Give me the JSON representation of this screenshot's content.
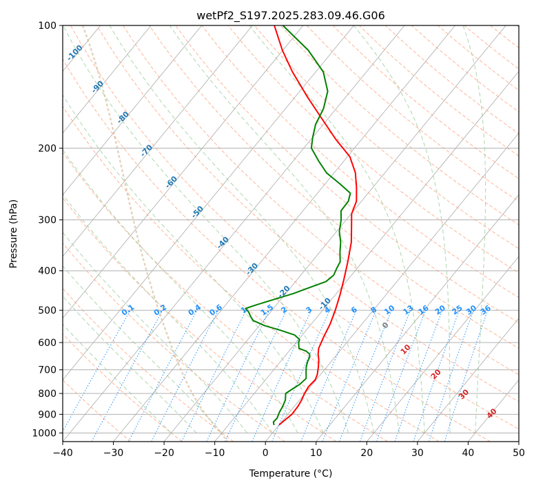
{
  "chart_data": {
    "type": "line",
    "subtype": "skew-t log-p sounding",
    "title": "wetPf2_S197.2025.283.09.46.G06",
    "xlabel": "Temperature (°C)",
    "ylabel": "Pressure (hPa)",
    "xlim": [
      -40,
      50
    ],
    "ylim": [
      1050,
      100
    ],
    "x_ticks": [
      -40,
      -30,
      -20,
      -10,
      0,
      10,
      20,
      30,
      40,
      50
    ],
    "y_ticks": [
      100,
      200,
      300,
      400,
      500,
      600,
      700,
      800,
      900,
      1000
    ],
    "colors": {
      "temperature": "#ff0000",
      "dewpoint": "#008000",
      "isotherm": "#aaaaaa",
      "dry_adiabat": "#ffa07a",
      "moist_adiabat": "#90c890",
      "mixing_ratio": "#1e90ff",
      "isotherm_label": "#1f77b4",
      "adiabat_label": "#d62728",
      "zero_label": "#808080",
      "parcel_arc": "#d2b48c"
    },
    "series": [
      {
        "name": "Temperature",
        "color": "#ff0000",
        "points": [
          [
            956,
            0
          ],
          [
            940,
            0.2
          ],
          [
            900,
            0.8
          ],
          [
            860,
            0.7
          ],
          [
            830,
            0.4
          ],
          [
            800,
            -0.1
          ],
          [
            770,
            -0.4
          ],
          [
            740,
            -0.2
          ],
          [
            720,
            -0.6
          ],
          [
            690,
            -1.6
          ],
          [
            660,
            -2.8
          ],
          [
            640,
            -3.8
          ],
          [
            620,
            -4.6
          ],
          [
            580,
            -5.5
          ],
          [
            540,
            -6.3
          ],
          [
            500,
            -7.5
          ],
          [
            460,
            -9.0
          ],
          [
            420,
            -10.8
          ],
          [
            380,
            -12.9
          ],
          [
            340,
            -15.4
          ],
          [
            310,
            -18.0
          ],
          [
            290,
            -19.9
          ],
          [
            270,
            -21.0
          ],
          [
            250,
            -23.2
          ],
          [
            230,
            -25.8
          ],
          [
            210,
            -29.5
          ],
          [
            190,
            -35.2
          ],
          [
            170,
            -41.0
          ],
          [
            150,
            -47.5
          ],
          [
            130,
            -54.6
          ],
          [
            115,
            -60.1
          ],
          [
            100,
            -65.7
          ]
        ]
      },
      {
        "name": "Dewpoint",
        "color": "#008000",
        "points": [
          [
            956,
            -1.0
          ],
          [
            940,
            -1.6
          ],
          [
            920,
            -1.5
          ],
          [
            890,
            -2.0
          ],
          [
            860,
            -2.3
          ],
          [
            830,
            -2.8
          ],
          [
            800,
            -3.8
          ],
          [
            780,
            -3.2
          ],
          [
            760,
            -2.5
          ],
          [
            735,
            -2.2
          ],
          [
            710,
            -3.2
          ],
          [
            690,
            -4.0
          ],
          [
            670,
            -4.6
          ],
          [
            650,
            -5.0
          ],
          [
            640,
            -5.5
          ],
          [
            630,
            -6.6
          ],
          [
            620,
            -8.5
          ],
          [
            600,
            -9.5
          ],
          [
            590,
            -9.8
          ],
          [
            575,
            -11.5
          ],
          [
            560,
            -15.0
          ],
          [
            545,
            -19.0
          ],
          [
            530,
            -22.0
          ],
          [
            520,
            -23.0
          ],
          [
            505,
            -24.3
          ],
          [
            495,
            -25.5
          ],
          [
            485,
            -24.0
          ],
          [
            470,
            -21.3
          ],
          [
            455,
            -18.5
          ],
          [
            440,
            -16.3
          ],
          [
            425,
            -14.0
          ],
          [
            410,
            -13.5
          ],
          [
            395,
            -14.0
          ],
          [
            380,
            -14.4
          ],
          [
            360,
            -16.0
          ],
          [
            340,
            -17.5
          ],
          [
            320,
            -19.5
          ],
          [
            300,
            -21.0
          ],
          [
            285,
            -22.5
          ],
          [
            270,
            -22.6
          ],
          [
            258,
            -23.5
          ],
          [
            245,
            -27.0
          ],
          [
            230,
            -31.5
          ],
          [
            215,
            -35.0
          ],
          [
            200,
            -38.5
          ],
          [
            188,
            -40.0
          ],
          [
            175,
            -41.5
          ],
          [
            160,
            -42.5
          ],
          [
            145,
            -44.5
          ],
          [
            130,
            -48.5
          ],
          [
            115,
            -55.0
          ],
          [
            100,
            -64.0
          ]
        ]
      }
    ],
    "isotherm_labels": [
      "-100",
      "-90",
      "-80",
      "-70",
      "-60",
      "-50",
      "-40",
      "-30",
      "-20",
      "-10"
    ],
    "mixing_ratio_labels": [
      "0.1",
      "0.2",
      "0.4",
      "0.6",
      "1",
      "1.5",
      "2",
      "3",
      "4",
      "6",
      "8",
      "10",
      "13",
      "16",
      "20",
      "25",
      "30",
      "36"
    ],
    "adiabat_labels": [
      "0",
      "10",
      "20",
      "30",
      "40"
    ]
  }
}
